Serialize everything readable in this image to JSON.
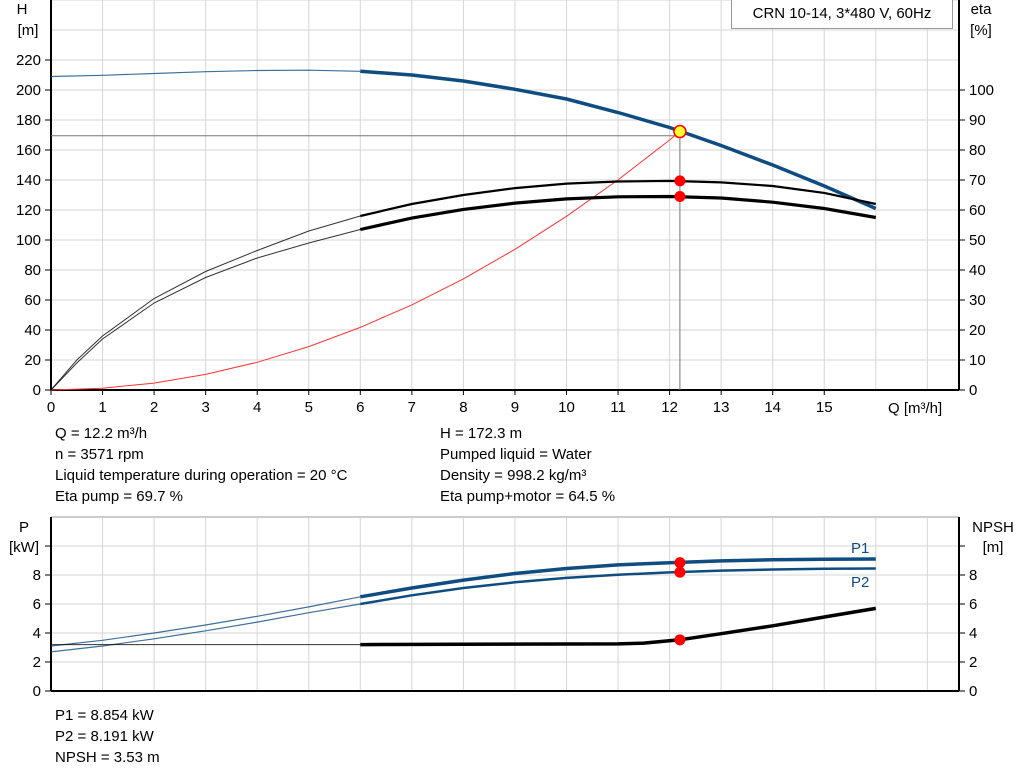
{
  "chart_data": [
    {
      "type": "line",
      "legend": "CRN 10-14, 3*480 V, 60Hz",
      "xlabel": "Q [m³/h]",
      "ylabel": "H",
      "ylabel_unit": "[m]",
      "y2label": "eta",
      "y2label_unit": "[%]",
      "xlim": [
        0,
        17.5
      ],
      "ylim": [
        0,
        260
      ],
      "y2lim": [
        0,
        130
      ],
      "grid": true,
      "xticks": [
        0,
        1,
        2,
        3,
        4,
        5,
        6,
        7,
        8,
        9,
        10,
        11,
        12,
        13,
        14,
        15
      ],
      "yticks": [
        0,
        20,
        40,
        60,
        80,
        100,
        120,
        140,
        160,
        180,
        200,
        220
      ],
      "y2ticks": [
        0,
        10,
        20,
        30,
        40,
        50,
        60,
        70,
        80,
        90,
        100
      ],
      "colors": {
        "head": "#0f4c81",
        "eta": "#000000",
        "system": "#ff3333",
        "point": "#ff0000",
        "duty_point": "#ffff33"
      },
      "series": [
        {
          "key": "head",
          "axis": "left",
          "x": [
            0,
            1,
            2,
            3,
            4,
            5,
            6,
            7,
            8,
            9,
            10,
            11,
            12,
            13,
            14,
            15,
            16
          ],
          "y": [
            209,
            209.8,
            211,
            212.2,
            213,
            213.2,
            212.5,
            210,
            206,
            200.5,
            194,
            185,
            175,
            163,
            150,
            136,
            121
          ]
        },
        {
          "key": "eta_pump",
          "axis": "right",
          "x": [
            0,
            0.5,
            1,
            2,
            3,
            4,
            5,
            6,
            7,
            8,
            9,
            10,
            11,
            12,
            13,
            14,
            15,
            16
          ],
          "y": [
            0,
            10,
            18,
            30.5,
            39.5,
            46.5,
            53,
            58,
            62,
            65,
            67.3,
            68.8,
            69.5,
            69.7,
            69.2,
            68,
            65.7,
            62
          ]
        },
        {
          "key": "eta_pump_motor",
          "axis": "right",
          "x": [
            0,
            0.5,
            1,
            2,
            3,
            4,
            5,
            6,
            7,
            8,
            9,
            10,
            11,
            12,
            13,
            14,
            15,
            16
          ],
          "y": [
            0,
            9,
            17,
            29,
            37.5,
            44,
            49,
            53.5,
            57.3,
            60.2,
            62.3,
            63.7,
            64.4,
            64.5,
            64,
            62.6,
            60.5,
            57.5
          ]
        },
        {
          "key": "system",
          "axis": "left",
          "x": [
            0,
            1,
            2,
            3,
            4,
            5,
            6,
            7,
            8,
            9,
            10,
            11,
            12,
            12.2
          ],
          "y": [
            0,
            1.2,
            4.6,
            10.4,
            18.5,
            28.9,
            41.7,
            56.7,
            74.1,
            93.8,
            115.8,
            140.1,
            166.7,
            172.3
          ]
        }
      ],
      "duty_point": {
        "Q": 12.2,
        "H": 172.3,
        "eta_pump": 69.7,
        "eta_pump_motor": 64.5
      }
    },
    {
      "type": "line",
      "ylabel": "P",
      "ylabel_unit": "[kW]",
      "y2label": "NPSH",
      "y2label_unit": "[m]",
      "xlim": [
        0,
        17.5
      ],
      "ylim": [
        0,
        10.5
      ],
      "grid": true,
      "yticks": [
        0,
        2,
        4,
        6,
        8
      ],
      "y2ticks": [
        0,
        2,
        4,
        6,
        8
      ],
      "series": [
        {
          "key": "P1",
          "name": "P1",
          "x": [
            0,
            1,
            2,
            3,
            4,
            5,
            6,
            7,
            8,
            9,
            10,
            11,
            12,
            13,
            14,
            15,
            16
          ],
          "y": [
            3.1,
            3.5,
            4.0,
            4.55,
            5.15,
            5.8,
            6.5,
            7.1,
            7.65,
            8.1,
            8.45,
            8.7,
            8.85,
            8.97,
            9.05,
            9.08,
            9.1
          ]
        },
        {
          "key": "P2",
          "name": "P2",
          "x": [
            0,
            1,
            2,
            3,
            4,
            5,
            6,
            7,
            8,
            9,
            10,
            11,
            12,
            13,
            14,
            15,
            16
          ],
          "y": [
            2.7,
            3.1,
            3.6,
            4.15,
            4.75,
            5.4,
            6.0,
            6.6,
            7.1,
            7.5,
            7.8,
            8.02,
            8.18,
            8.3,
            8.38,
            8.43,
            8.45
          ]
        },
        {
          "key": "NPSH",
          "x": [
            0,
            2,
            4,
            6,
            8,
            10,
            11,
            11.5,
            12.2,
            13,
            14,
            15,
            16
          ],
          "y": [
            3.2,
            3.2,
            3.2,
            3.2,
            3.22,
            3.24,
            3.25,
            3.3,
            3.53,
            3.95,
            4.5,
            5.1,
            5.7
          ]
        }
      ],
      "duty_point": {
        "P1": 8.854,
        "P2": 8.191,
        "NPSH": 3.53
      }
    }
  ],
  "info": {
    "q": "Q = 12.2 m³/h",
    "n": "n = 3571 rpm",
    "temp": "Liquid temperature during operation = 20 °C",
    "eta_pump": "Eta pump = 69.7 %",
    "h": "H = 172.3 m",
    "liquid": "Pumped liquid = Water",
    "density": "Density = 998.2 kg/m³",
    "eta_total": "Eta pump+motor = 64.5 %",
    "p1": "P1 = 8.854 kW",
    "p2": "P2 = 8.191 kW",
    "npsh": "NPSH = 3.53 m"
  }
}
